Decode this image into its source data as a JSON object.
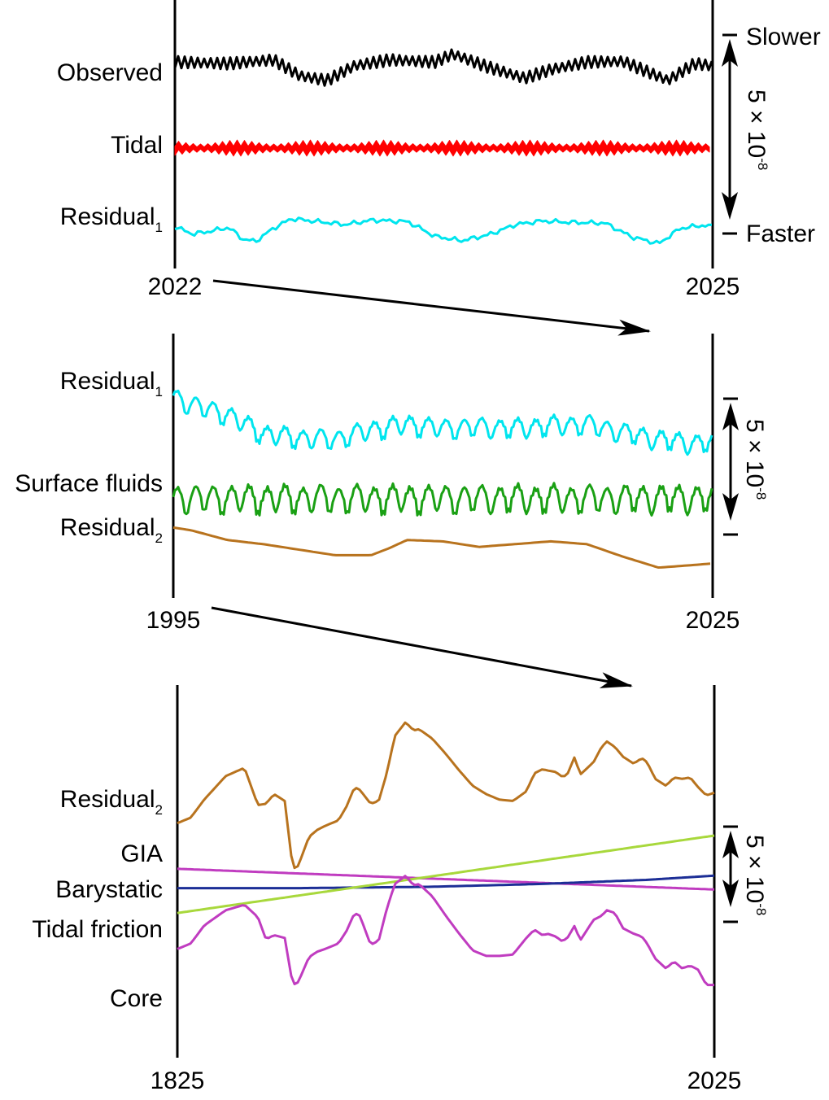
{
  "chart_data": [
    {
      "type": "line",
      "x_start_label": "2022",
      "x_end_label": "2025",
      "xlim": [
        2022,
        2025
      ],
      "scale_bar": {
        "value": "5 × 10",
        "exponent": "-8",
        "top_label": "Slower",
        "bottom_label": "Faster"
      },
      "series": [
        {
          "name": "Observed",
          "color": "#000000",
          "style": "oscillating",
          "x": [
            2022.0,
            2022.3,
            2022.55,
            2022.7,
            2022.85,
            2023.0,
            2023.2,
            2023.45,
            2023.55,
            2023.75,
            2023.95,
            2024.1,
            2024.3,
            2024.5,
            2024.75,
            2024.9,
            2025.0
          ],
          "y": [
            1.3,
            1.1,
            1.6,
            -0.6,
            -1.2,
            0.8,
            1.6,
            1.3,
            2.4,
            0.6,
            -0.9,
            0.3,
            1.3,
            1.4,
            -1.2,
            1.1,
            0.8
          ],
          "amplitude": 0.8
        },
        {
          "name": "Tidal",
          "color": "#ff0000",
          "style": "oscillating",
          "x": [
            2022.0,
            2025.0
          ],
          "y": [
            0,
            0
          ],
          "amplitude": 1.1
        },
        {
          "name": "Residual",
          "subscript": "1",
          "color": "#00e5ee",
          "x": [
            2022.0,
            2022.1,
            2022.2,
            2022.3,
            2022.38,
            2022.45,
            2022.55,
            2022.65,
            2022.8,
            2022.95,
            2023.1,
            2023.3,
            2023.45,
            2023.6,
            2023.75,
            2023.9,
            2024.05,
            2024.2,
            2024.4,
            2024.55,
            2024.7,
            2024.82,
            2024.95,
            2025.0
          ],
          "y": [
            0.7,
            -0.3,
            0.1,
            0.6,
            -1.0,
            -1.3,
            0.5,
            1.8,
            1.4,
            1.0,
            1.6,
            1.4,
            -0.6,
            -1.2,
            -0.4,
            1.0,
            1.5,
            1.3,
            1.2,
            -0.7,
            -1.6,
            0.5,
            0.9,
            0.7
          ]
        }
      ]
    },
    {
      "type": "line",
      "x_start_label": "1995",
      "x_end_label": "2025",
      "xlim": [
        1995,
        2025
      ],
      "scale_bar": {
        "value": "5 × 10",
        "exponent": "-8"
      },
      "series": [
        {
          "name": "Residual",
          "subscript": "1",
          "color": "#00e5ee",
          "style": "seasonal",
          "x": [
            1995,
            1996,
            1998,
            2000,
            2002,
            2004,
            2006,
            2008,
            2010,
            2012,
            2014,
            2016,
            2018,
            2020,
            2022,
            2024,
            2025
          ],
          "y": [
            3.2,
            2.6,
            1.9,
            0.5,
            0.2,
            0.1,
            0.8,
            1.2,
            0.9,
            1.0,
            0.9,
            1.1,
            1.2,
            0.6,
            0.1,
            -0.2,
            -0.1
          ],
          "amplitude": 0.6
        },
        {
          "name": "Surface fluids",
          "color": "#1aa014",
          "style": "seasonal",
          "x": [
            1995,
            2025
          ],
          "y": [
            0,
            0
          ],
          "amplitude": 0.85
        },
        {
          "name": "Residual",
          "subscript": "2",
          "color": "#b8731e",
          "x": [
            1995,
            1996,
            1998,
            2000,
            2002,
            2004,
            2006,
            2007,
            2008,
            2010,
            2012,
            2014,
            2016,
            2018,
            2020,
            2022,
            2023,
            2024,
            2025
          ],
          "y": [
            -0.2,
            -0.4,
            -1.1,
            -1.4,
            -1.8,
            -2.2,
            -2.2,
            -1.7,
            -1.1,
            -1.2,
            -1.6,
            -1.4,
            -1.2,
            -1.4,
            -2.3,
            -3.1,
            -3.0,
            -2.9,
            -2.8
          ]
        }
      ]
    },
    {
      "type": "line",
      "x_start_label": "1825",
      "x_end_label": "2025",
      "xlim": [
        1825,
        2025
      ],
      "scale_bar": {
        "value": "5 × 10",
        "exponent": "-8"
      },
      "series": [
        {
          "name": "Residual",
          "subscript": "2",
          "color": "#b8731e",
          "x": [
            1825,
            1830,
            1835,
            1843,
            1850,
            1855,
            1858,
            1861,
            1865,
            1868,
            1870,
            1874,
            1877,
            1880,
            1885,
            1888,
            1891,
            1893,
            1897,
            1900,
            1903,
            1906,
            1910,
            1913,
            1915,
            1920,
            1925,
            1930,
            1935,
            1940,
            1945,
            1950,
            1955,
            1958,
            1961,
            1963,
            1966,
            1968,
            1970,
            1973,
            1975,
            1980,
            1983,
            1985,
            1988,
            1991,
            1995,
            1998,
            2000,
            2003,
            2007,
            2010,
            2013,
            2016,
            2019,
            2022,
            2025
          ],
          "y": [
            -0.1,
            0.3,
            1.6,
            3.3,
            3.9,
            1.2,
            1.3,
            2.0,
            1.5,
            -3.4,
            -3.2,
            -1.1,
            -0.6,
            -0.3,
            0.1,
            1.1,
            2.5,
            2.3,
            1.3,
            1.5,
            3.5,
            6.2,
            7.2,
            6.6,
            6.7,
            6.0,
            4.9,
            3.7,
            2.6,
            2.0,
            1.6,
            1.5,
            2.2,
            3.5,
            3.8,
            3.7,
            3.6,
            3.3,
            3.3,
            4.7,
            3.4,
            4.3,
            5.4,
            5.8,
            5.4,
            4.7,
            4.2,
            4.6,
            4.3,
            3.1,
            2.6,
            3.2,
            3.1,
            3.2,
            2.5,
            1.9,
            2.1
          ]
        },
        {
          "name": "GIA",
          "color": "#c03cc0",
          "x": [
            1825,
            2025
          ],
          "y": [
            -3.4,
            -4.9
          ]
        },
        {
          "name": "Barystatic",
          "color": "#1c2e96",
          "x": [
            1825,
            1870,
            1920,
            1960,
            2000,
            2025
          ],
          "y": [
            -4.8,
            -4.8,
            -4.7,
            -4.5,
            -4.2,
            -3.9
          ]
        },
        {
          "name": "Tidal friction",
          "color": "#a8d83c",
          "x": [
            1825,
            2025
          ],
          "y": [
            -6.6,
            -1.0
          ]
        },
        {
          "name": "Core",
          "color": "#c03cc0",
          "x": [
            1825,
            1830,
            1835,
            1843,
            1850,
            1855,
            1858,
            1861,
            1865,
            1868,
            1870,
            1874,
            1877,
            1880,
            1885,
            1888,
            1891,
            1893,
            1897,
            1900,
            1903,
            1906,
            1910,
            1913,
            1915,
            1920,
            1925,
            1930,
            1935,
            1940,
            1945,
            1950,
            1955,
            1958,
            1961,
            1963,
            1966,
            1968,
            1970,
            1973,
            1975,
            1980,
            1983,
            1985,
            1988,
            1991,
            1995,
            1998,
            2000,
            2003,
            2007,
            2010,
            2013,
            2016,
            2019,
            2022,
            2025
          ],
          "y": [
            -9.2,
            -8.8,
            -7.5,
            -6.4,
            -6.0,
            -6.9,
            -8.5,
            -8.2,
            -8.4,
            -11.8,
            -11.6,
            -9.8,
            -9.4,
            -9.2,
            -8.8,
            -7.9,
            -6.6,
            -6.8,
            -8.9,
            -8.6,
            -6.3,
            -4.5,
            -3.9,
            -4.6,
            -4.5,
            -5.4,
            -6.8,
            -8.1,
            -9.3,
            -9.7,
            -9.7,
            -9.6,
            -8.4,
            -7.8,
            -8.2,
            -8.1,
            -8.3,
            -8.6,
            -8.5,
            -7.5,
            -8.6,
            -7.1,
            -6.8,
            -6.4,
            -6.6,
            -7.7,
            -8.1,
            -8.3,
            -8.8,
            -9.9,
            -10.6,
            -10.1,
            -10.6,
            -10.4,
            -10.7,
            -11.8,
            -11.8
          ]
        }
      ]
    }
  ]
}
